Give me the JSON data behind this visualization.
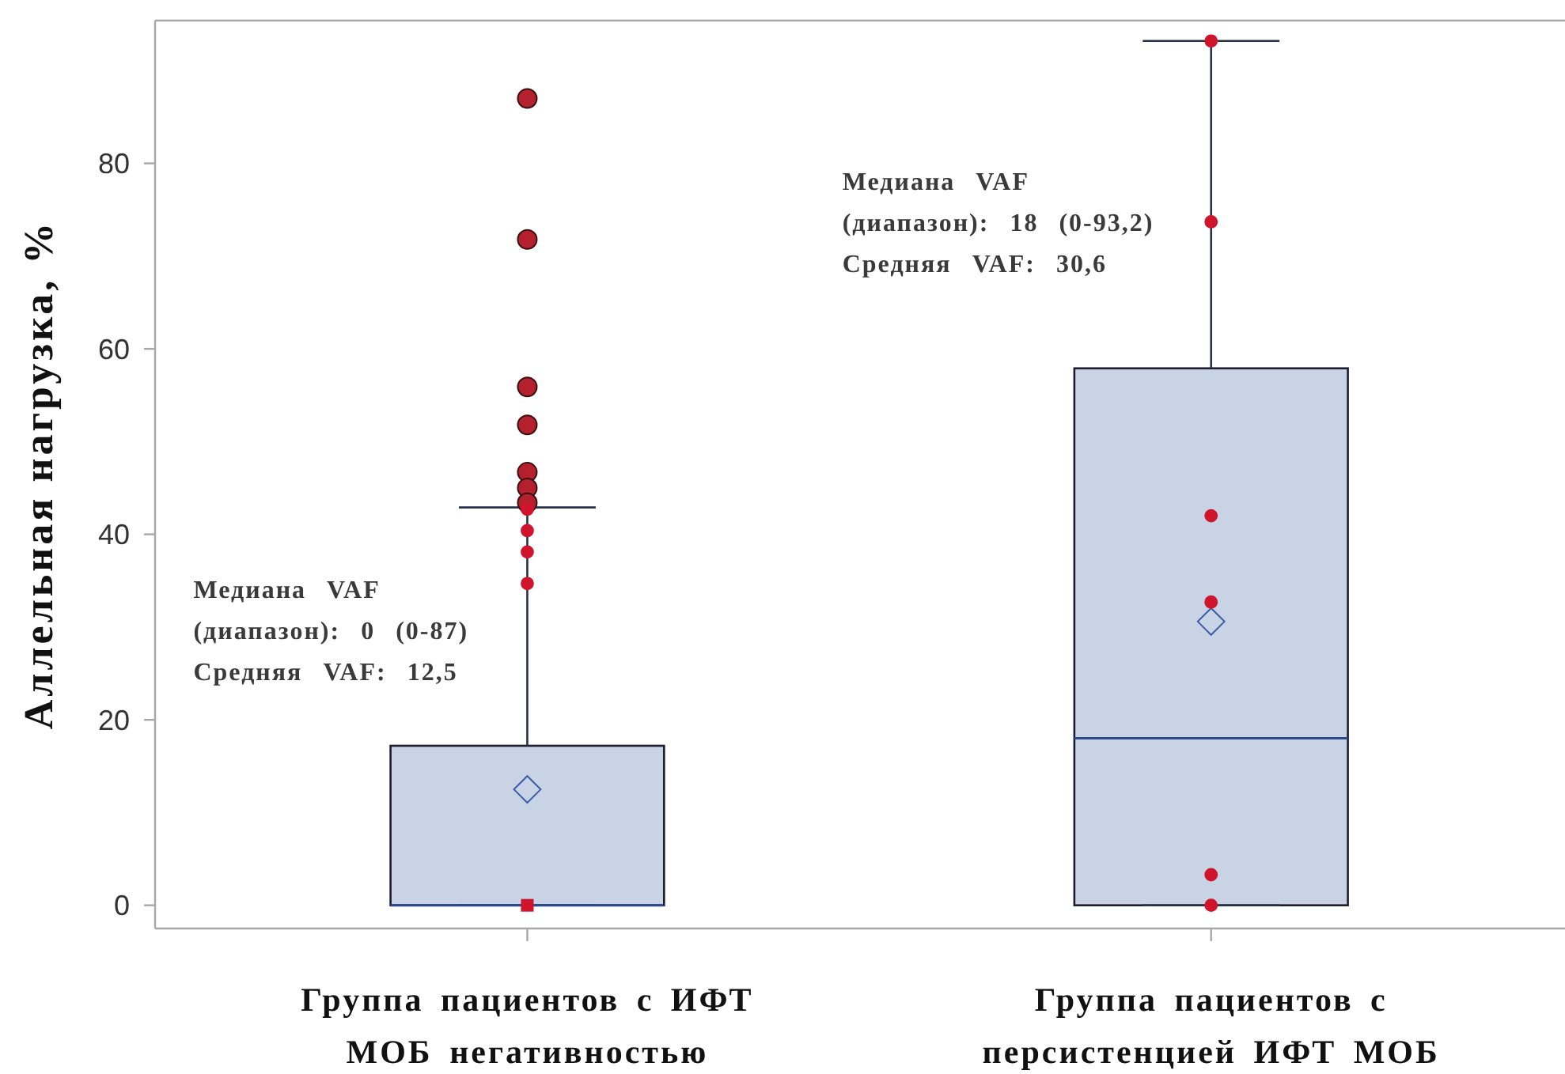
{
  "chart_data": {
    "type": "box",
    "ylabel": "Аллельная нагрузка, %",
    "categories": [
      "Группа пациентов с ИФТ\nМОБ негативностью",
      "Группа пациентов с\nперсистенцией ИФТ МОБ"
    ],
    "ylim": [
      -2.5,
      95.4
    ],
    "yticks": [
      0,
      20,
      40,
      60,
      80
    ],
    "series": [
      {
        "color": "#c8d4e6",
        "boxes": [
          {
            "low": 0,
            "q1": 0,
            "median": 0,
            "q3": 17.2,
            "high": 42.9,
            "mean": 12.5,
            "outliers": [
              87,
              71.8,
              55.9,
              51.8,
              46.7,
              45,
              43.4
            ]
          },
          {
            "low": 0,
            "q1": 0,
            "median": 18,
            "q3": 57.9,
            "high": 93.2,
            "mean": 30.6
          }
        ]
      },
      {
        "type": "scatter",
        "color": "#d0142c",
        "marker": "circle",
        "x": [
          "Группа пациентов с ИФТ\nМОБ негативностью",
          "Группа пациентов с ИФТ\nМОБ негативностью",
          "Группа пациентов с ИФТ\nМОБ негативностью",
          "Группа пациентов с ИФТ\nМОБ негативностью",
          "Группа пациентов с\nперсистенцией ИФТ МОБ",
          "Группа пациентов с\nперсистенцией ИФТ МОБ",
          "Группа пациентов с\nперсистенцией ИФТ МОБ",
          "Группа пациентов с\nперсистенцией ИФТ МОБ",
          "Группа пациентов с\nперсистенцией ИФТ МОБ",
          "Группа пациентов с\nперсистенцией ИФТ МОБ"
        ],
        "values": [
          42.7,
          40.4,
          38.1,
          34.7,
          93.2,
          73.7,
          42,
          32.7,
          3.3,
          0
        ]
      },
      {
        "type": "scatter",
        "color": "#d0142c",
        "marker": "square",
        "x": [
          "Группа пациентов с ИФТ\nМОБ негативностью"
        ],
        "values": [
          0
        ]
      }
    ],
    "annotations": [
      "Медиана VAF\n(диапазон): 0 (0-87)\nСредняя VAF: 12,5",
      "Медиана VAF\n(диапазон): 18 (0-93,2)\nСредняя VAF: 30,6"
    ]
  }
}
